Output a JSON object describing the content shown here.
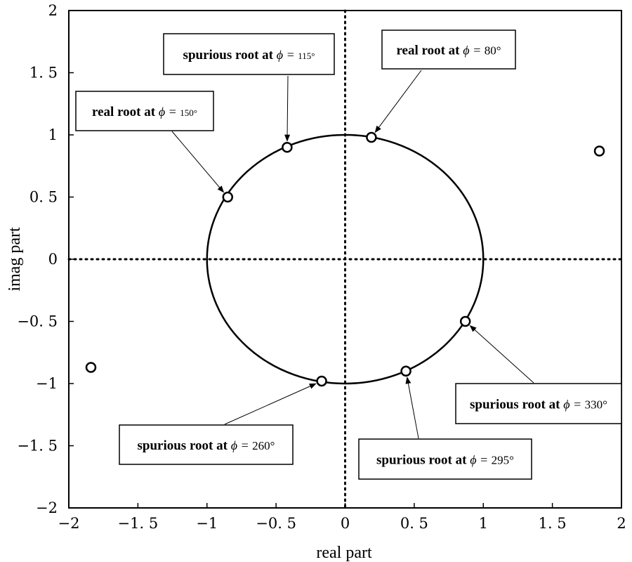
{
  "chart_data": {
    "type": "scatter",
    "title": "",
    "xlabel": "real part",
    "ylabel": "imag part",
    "xlim": [
      -2,
      2
    ],
    "ylim": [
      -2,
      2
    ],
    "xticks": [
      "−2",
      "−1. 5",
      "−1",
      "−0. 5",
      "0",
      "0. 5",
      "1",
      "1. 5",
      "2"
    ],
    "yticks": [
      "2",
      "1. 5",
      "1",
      "0. 5",
      "0",
      "−0. 5",
      "−1",
      "−1. 5",
      "−2"
    ],
    "xtick_values": [
      -2,
      -1.5,
      -1,
      -0.5,
      0,
      0.5,
      1,
      1.5,
      2
    ],
    "ytick_values": [
      2,
      1.5,
      1,
      0.5,
      0,
      -0.5,
      -1,
      -1.5,
      -2
    ],
    "grid": false,
    "zero_lines": "dotted",
    "curve": {
      "type": "unit-circle",
      "radius": 1
    },
    "points": [
      {
        "x": 0.19,
        "y": 0.98
      },
      {
        "x": -0.42,
        "y": 0.9
      },
      {
        "x": -0.85,
        "y": 0.5
      },
      {
        "x": 0.87,
        "y": -0.5
      },
      {
        "x": 0.44,
        "y": -0.9
      },
      {
        "x": -0.17,
        "y": -0.98
      },
      {
        "x": 1.84,
        "y": 0.87
      },
      {
        "x": -1.84,
        "y": -0.87
      }
    ],
    "annotations": [
      {
        "name": "annotation-spurious-115",
        "text": "spurious root at",
        "phi": "ϕ = ",
        "angle": "115°",
        "target": {
          "x": -0.42,
          "y": 0.9
        }
      },
      {
        "name": "annotation-real-80",
        "text": "real root at",
        "phi": "ϕ = ",
        "angle": "80°",
        "target": {
          "x": 0.19,
          "y": 0.98
        }
      },
      {
        "name": "annotation-real-150",
        "text": "real root at",
        "phi": "ϕ = ",
        "angle": "150°",
        "target": {
          "x": -0.85,
          "y": 0.5
        }
      },
      {
        "name": "annotation-spurious-330",
        "text": "spurious root at",
        "phi": "ϕ = ",
        "angle": "330°",
        "target": {
          "x": 0.87,
          "y": -0.5
        }
      },
      {
        "name": "annotation-spurious-260",
        "text": "spurious root at",
        "phi": "ϕ = ",
        "angle": "260°",
        "target": {
          "x": -0.17,
          "y": -0.98
        }
      },
      {
        "name": "annotation-spurious-295",
        "text": "spurious root at",
        "phi": "ϕ = ",
        "angle": "295°",
        "target": {
          "x": 0.44,
          "y": -0.9
        }
      }
    ]
  }
}
